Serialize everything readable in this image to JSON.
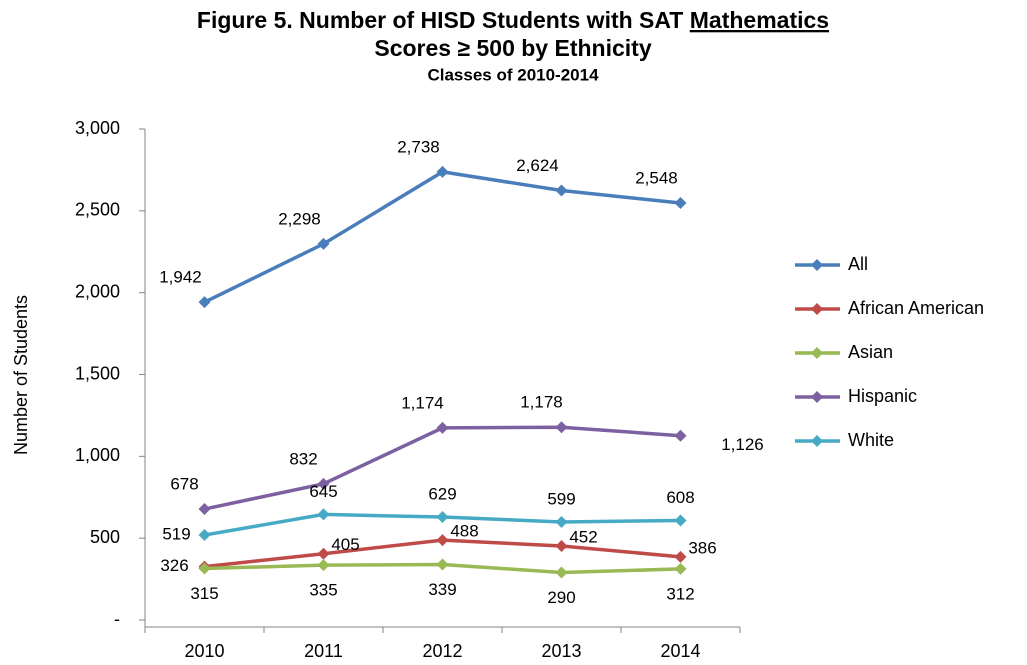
{
  "chart_data": {
    "type": "line",
    "title": {
      "line1": "Figure 5. Number of HISD Students with SAT",
      "underlined": "Mathematics",
      "line2": "Scores ≥ 500 by Ethnicity"
    },
    "subtitle": "Classes of 2010-2014",
    "y_label": "Number of Students",
    "categories": [
      "2010",
      "2011",
      "2012",
      "2013",
      "2014"
    ],
    "ylim": [
      0,
      3000
    ],
    "yticks": [
      {
        "value": 0,
        "label": "-"
      },
      500,
      {
        "value": 1000,
        "label": "1,000"
      },
      {
        "value": 1500,
        "label": "1,500"
      },
      {
        "value": 2000,
        "label": "2,000"
      },
      {
        "value": 2500,
        "label": "2,500"
      },
      {
        "value": 3000,
        "label": "3,000"
      }
    ],
    "grid": false,
    "legend": "right",
    "series": [
      {
        "name": "All",
        "color": "#4a7ebb",
        "values": [
          1942,
          2298,
          2738,
          2624,
          2548
        ],
        "value_labels": [
          "1,942",
          "2,298",
          "2,738",
          "2,624",
          "2,548"
        ]
      },
      {
        "name": "African American",
        "color": "#be4b48",
        "values": [
          326,
          405,
          488,
          452,
          386
        ]
      },
      {
        "name": "Asian",
        "color": "#98b954",
        "values": [
          315,
          335,
          339,
          290,
          312
        ]
      },
      {
        "name": "Hispanic",
        "color": "#7d60a0",
        "values": [
          678,
          832,
          1174,
          1178,
          1126
        ],
        "value_labels": [
          "678",
          "832",
          "1,174",
          "1,178",
          "1,126"
        ]
      },
      {
        "name": "White",
        "color": "#46aac5",
        "values": [
          519,
          645,
          629,
          599,
          608
        ]
      }
    ]
  }
}
